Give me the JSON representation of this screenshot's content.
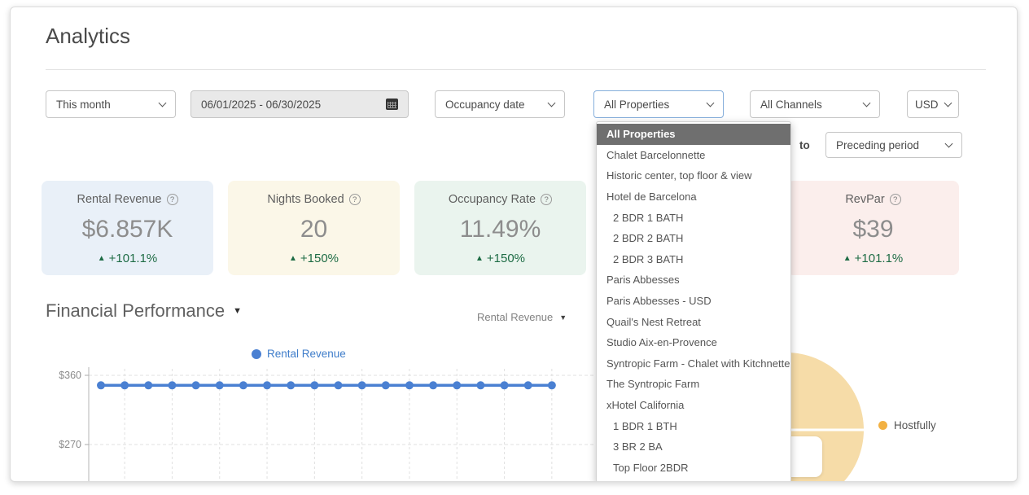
{
  "page": {
    "title": "Analytics"
  },
  "filters": {
    "period": "This month",
    "date_range": "06/01/2025 - 06/30/2025",
    "date_basis": "Occupancy date",
    "properties": "All Properties",
    "channels": "All Channels",
    "currency": "USD",
    "compare_connector": "to",
    "compare_period": "Preceding period"
  },
  "kpis": [
    {
      "label": "Rental Revenue",
      "value": "$6.857K",
      "delta": "+101.1%",
      "bg": "#e9f0f8"
    },
    {
      "label": "Nights Booked",
      "value": "20",
      "delta": "+150%",
      "bg": "#fbf7e8"
    },
    {
      "label": "Occupancy Rate",
      "value": "11.49%",
      "delta": "+150%",
      "bg": "#eaf4ee"
    },
    {
      "label": "",
      "value": "",
      "delta": "",
      "bg": "#ffffff",
      "hidden": true
    },
    {
      "label": "RevPar",
      "value": "$39",
      "delta": "+101.1%",
      "bg": "#fbeeec"
    }
  ],
  "property_dropdown": {
    "items": [
      {
        "label": "All Properties",
        "selected": true
      },
      {
        "label": "Chalet Barcelonnette"
      },
      {
        "label": "Historic center, top floor & view"
      },
      {
        "label": "Hotel de Barcelona"
      },
      {
        "label": "2 BDR 1 BATH",
        "indent": true
      },
      {
        "label": "2 BDR 2 BATH",
        "indent": true
      },
      {
        "label": "2 BDR 3 BATH",
        "indent": true
      },
      {
        "label": "Paris Abbesses"
      },
      {
        "label": "Paris Abbesses - USD"
      },
      {
        "label": "Quail's Nest Retreat"
      },
      {
        "label": "Studio Aix-en-Provence"
      },
      {
        "label": "Syntropic Farm - Chalet with Kitchnette"
      },
      {
        "label": "The Syntropic Farm"
      },
      {
        "label": "xHotel California"
      },
      {
        "label": "1 BDR 1 BTH",
        "indent": true
      },
      {
        "label": "3 BR 2 BA",
        "indent": true
      },
      {
        "label": "Top Floor 2BDR",
        "indent": true
      }
    ]
  },
  "financial": {
    "heading": "Financial Performance",
    "metric_select": "Rental Revenue",
    "legend_line": "Rental Revenue",
    "legend_pie": "Hostfully"
  },
  "icons": {
    "help": "?",
    "caret_down": "▼",
    "triangle_up": "▲"
  },
  "colors": {
    "accent_blue": "#4a80d2",
    "legend_blue": "#3f7dca",
    "positive_green": "#1e6c45",
    "pie_fill": "#f6dca8",
    "pie_legend_dot": "#f2b143",
    "dropdown_selected_bg": "#6f6f6f"
  },
  "chart_data": [
    {
      "type": "line",
      "title": "Financial Performance",
      "legend": [
        "Rental Revenue"
      ],
      "series": [
        {
          "name": "Rental Revenue",
          "color": "#4a80d2",
          "values": [
            347,
            347,
            347,
            347,
            347,
            347,
            347,
            347,
            347,
            347,
            347,
            347,
            347,
            347,
            347,
            347,
            347,
            347,
            347,
            347
          ]
        }
      ],
      "x_tick_labels_visible": false,
      "ytick_labels": [
        "$360",
        "$270"
      ],
      "ytick_values": [
        360,
        270
      ],
      "grid": "dashed"
    },
    {
      "type": "pie",
      "slices": [
        {
          "label": "Hostfully",
          "value": 100,
          "color": "#f2b143"
        }
      ],
      "legend_position": "right"
    }
  ]
}
